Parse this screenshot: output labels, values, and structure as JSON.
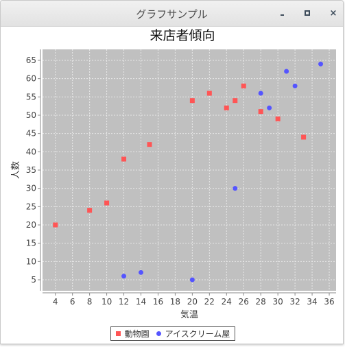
{
  "window": {
    "title": "グラフサンプル",
    "close_glyph": "×"
  },
  "chart_data": {
    "type": "scatter",
    "title": "来店者傾向",
    "xlabel": "気温",
    "ylabel": "人数",
    "xlim": [
      2.5,
      36.8
    ],
    "ylim": [
      2,
      68
    ],
    "x_ticks": [
      4,
      6,
      8,
      10,
      12,
      14,
      16,
      18,
      20,
      22,
      24,
      26,
      28,
      30,
      32,
      34,
      36
    ],
    "y_ticks": [
      5,
      10,
      15,
      20,
      25,
      30,
      35,
      40,
      45,
      50,
      55,
      60,
      65
    ],
    "grid": true,
    "legend_position": "bottom",
    "plot_background": "#c0c0c0",
    "series": [
      {
        "name": "動物園",
        "marker": "square",
        "color": "#ff5555",
        "points": [
          [
            4,
            20
          ],
          [
            8,
            24
          ],
          [
            10,
            26
          ],
          [
            12,
            38
          ],
          [
            15,
            42
          ],
          [
            20,
            54
          ],
          [
            22,
            56
          ],
          [
            24,
            52
          ],
          [
            25,
            54
          ],
          [
            26,
            58
          ],
          [
            28,
            51
          ],
          [
            30,
            49
          ],
          [
            33,
            44
          ]
        ]
      },
      {
        "name": "アイスクリーム屋",
        "marker": "circle",
        "color": "#5555ff",
        "points": [
          [
            12,
            6
          ],
          [
            14,
            7
          ],
          [
            20,
            5
          ],
          [
            25,
            30
          ],
          [
            28,
            56
          ],
          [
            29,
            52
          ],
          [
            31,
            62
          ],
          [
            32,
            58
          ],
          [
            35,
            64
          ]
        ]
      }
    ]
  }
}
